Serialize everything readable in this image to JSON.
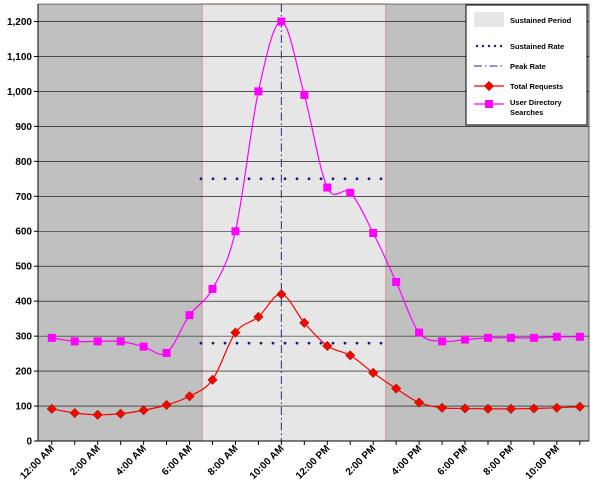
{
  "chart_data": {
    "type": "line",
    "title": "",
    "xlabel": "",
    "ylabel": "",
    "x_tick_labels": [
      "12:00 AM",
      "2:00 AM",
      "4:00 AM",
      "6:00 AM",
      "8:00 AM",
      "10:00 AM",
      "12:00 PM",
      "2:00 PM",
      "4:00 PM",
      "6:00 PM",
      "8:00 PM",
      "10:00 PM"
    ],
    "y_tick_labels": [
      "0",
      "100",
      "200",
      "300",
      "400",
      "500",
      "600",
      "700",
      "800",
      "900",
      "1,000",
      "1,100",
      "1,200"
    ],
    "ylim": [
      0,
      1250
    ],
    "xlim": [
      -0.6,
      23.4
    ],
    "grid": true,
    "legend_position": "top-right",
    "sustained_period": {
      "label": "Sustained Period",
      "start_hour": 6.55,
      "end_hour": 14.55
    },
    "peak_rate": {
      "label": "Peak  Rate",
      "hour": 10.0
    },
    "sustained_rates": [
      {
        "label": "Sustained Rate",
        "value": 750,
        "start_hour": 6.5,
        "end_hour": 14.5
      },
      {
        "label": "Sustained Rate",
        "value": 280,
        "start_hour": 6.5,
        "end_hour": 14.5
      }
    ],
    "series": [
      {
        "name": "User Directory Searches",
        "color": "#ff00ff",
        "marker": "square",
        "x": [
          0,
          1,
          2,
          3,
          4,
          5,
          6,
          7,
          8,
          9,
          10,
          11,
          12,
          13,
          14,
          15,
          16,
          17,
          18,
          19,
          20,
          21,
          22,
          23
        ],
        "values": [
          295,
          285,
          285,
          285,
          270,
          252,
          360,
          435,
          600,
          1000,
          1200,
          990,
          725,
          710,
          595,
          455,
          310,
          285,
          290,
          295,
          295,
          295,
          298,
          298
        ]
      },
      {
        "name": "Total Requests",
        "color": "#ff0000",
        "marker": "diamond",
        "x": [
          0,
          1,
          2,
          3,
          4,
          5,
          6,
          7,
          8,
          9,
          10,
          11,
          12,
          13,
          14,
          15,
          16,
          17,
          18,
          19,
          20,
          21,
          22,
          23
        ],
        "values": [
          92,
          80,
          75,
          78,
          88,
          103,
          128,
          175,
          310,
          355,
          420,
          338,
          272,
          245,
          195,
          150,
          110,
          95,
          93,
          92,
          92,
          93,
          95,
          98
        ]
      }
    ],
    "legend": {
      "sustained_period": "Sustained Period",
      "sustained_rate": "Sustained Rate",
      "peak_rate": "Peak  Rate",
      "total_requests": "Total Requests",
      "user_directory_searches_line1": "User Directory",
      "user_directory_searches_line2": "Searches"
    },
    "colors": {
      "outside_band": "#c0c0c0",
      "sustained_band": "#e6e6e6",
      "searches": "#ff00ff",
      "requests_fill": "#ff0000",
      "requests_stroke": "#aa2200",
      "rate_dots": "#1a1a80"
    }
  }
}
